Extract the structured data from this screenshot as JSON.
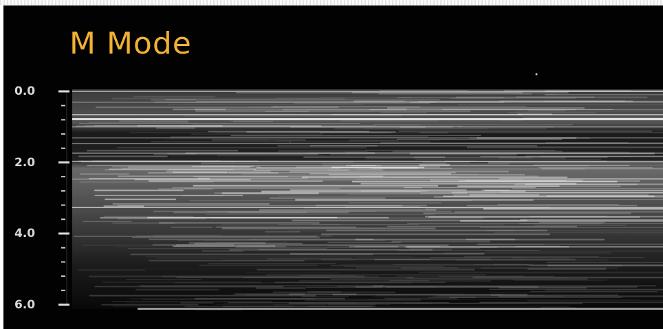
{
  "title": "M Mode",
  "depth_scale": {
    "labels": [
      "0.0",
      "2.0",
      "4.0",
      "6.0"
    ]
  }
}
